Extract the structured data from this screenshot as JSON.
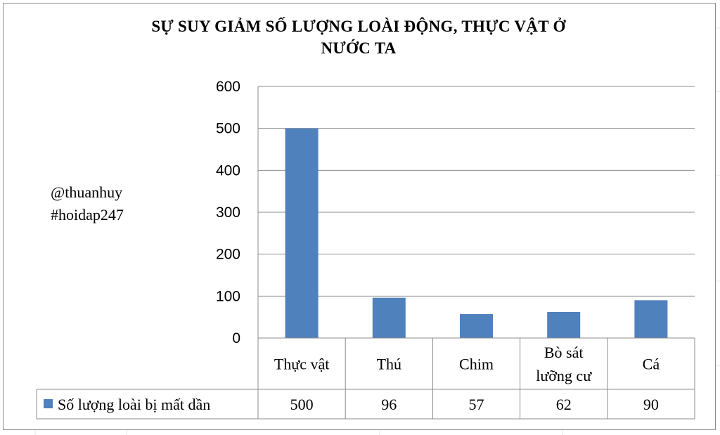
{
  "chart_data": {
    "type": "bar",
    "title": "SỰ SUY GIẢM  SỐ LƯỢNG LOÀI ĐỘNG, THỰC VẬT Ở NƯỚC TA",
    "title_lines": [
      "SỰ SUY GIẢM  SỐ LƯỢNG LOÀI ĐỘNG, THỰC VẬT Ở",
      "NƯỚC TA"
    ],
    "categories": [
      "Thực vật",
      "Thú",
      "Chim",
      "Bò sát lưỡng cư",
      "Cá"
    ],
    "category_lines": [
      [
        "Thực vật"
      ],
      [
        "Thú"
      ],
      [
        "Chim"
      ],
      [
        "Bò sát",
        "lưỡng cư"
      ],
      [
        "Cá"
      ]
    ],
    "series": [
      {
        "name": "Số lượng loài bị mất dần",
        "values": [
          500,
          96,
          57,
          62,
          90
        ],
        "color": "#4f81bd"
      }
    ],
    "ylim": [
      0,
      600
    ],
    "yticks": [
      0,
      100,
      200,
      300,
      400,
      500,
      600
    ],
    "xlabel": "",
    "ylabel": "",
    "grid": true,
    "data_table": true
  },
  "annotations": {
    "handle": "@thuanhuy",
    "hashtag": "#hoidap247"
  }
}
